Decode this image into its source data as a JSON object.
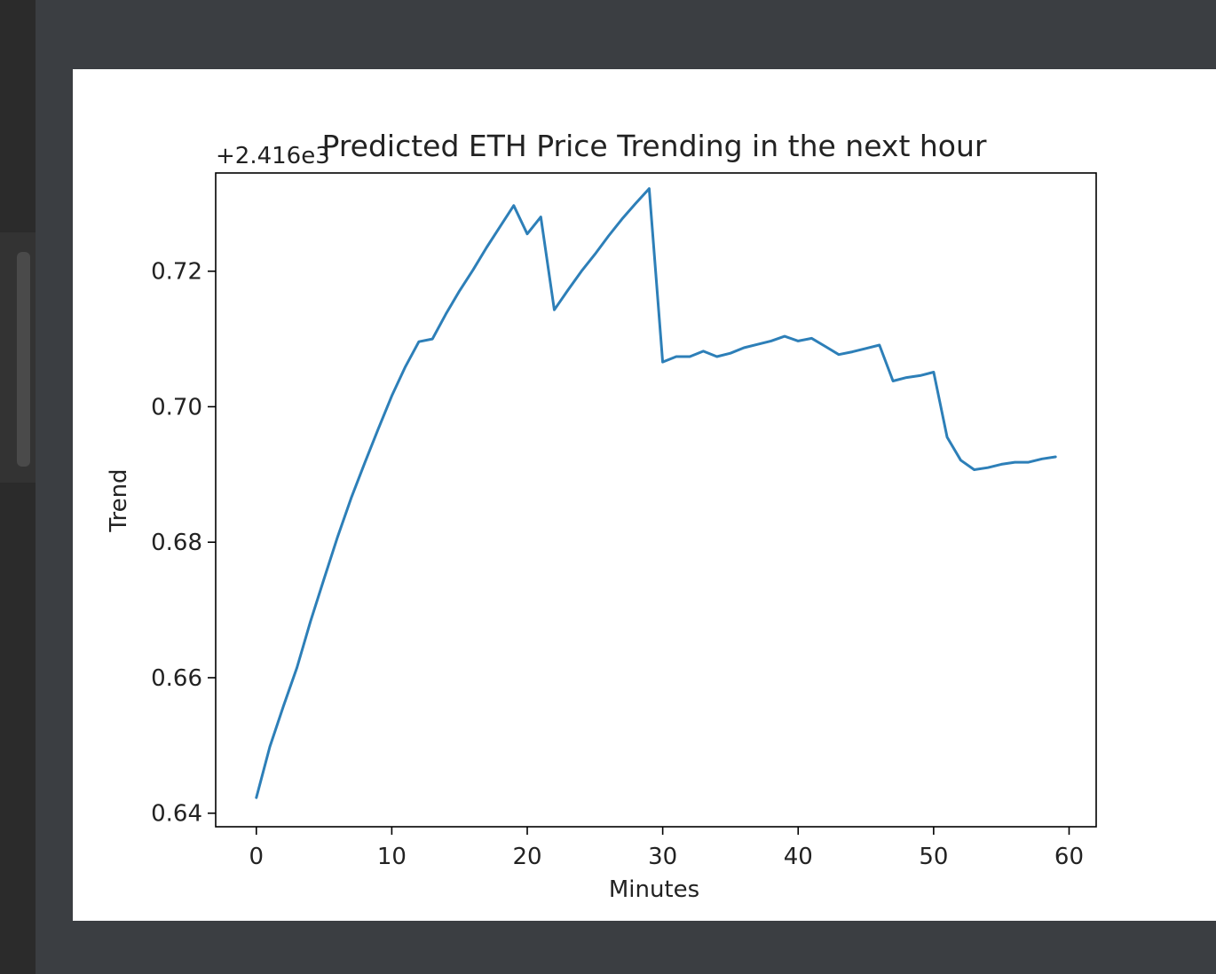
{
  "chart_data": {
    "type": "line",
    "title": "Predicted ETH Price Trending in the next hour",
    "xlabel": "Minutes",
    "ylabel": "Trend",
    "offset_label": "+2.416e3",
    "xlim": [
      -3,
      62
    ],
    "ylim": [
      0.638,
      0.7345
    ],
    "x_ticks": [
      0,
      10,
      20,
      30,
      40,
      50,
      60
    ],
    "y_ticks": [
      0.64,
      0.66,
      0.68,
      0.7,
      0.72
    ],
    "y_tick_labels": [
      "0.64",
      "0.66",
      "0.68",
      "0.70",
      "0.72"
    ],
    "grid": false,
    "series": [
      {
        "color": "#2d7fb8",
        "x": [
          0,
          1,
          2,
          3,
          4,
          5,
          6,
          7,
          8,
          9,
          10,
          11,
          12,
          13,
          14,
          15,
          16,
          17,
          18,
          19,
          20,
          21,
          22,
          23,
          24,
          25,
          26,
          27,
          28,
          29,
          30,
          31,
          32,
          33,
          34,
          35,
          36,
          37,
          38,
          39,
          40,
          41,
          42,
          43,
          44,
          45,
          46,
          47,
          48,
          49,
          50,
          51,
          52,
          53,
          54,
          55,
          56,
          57,
          58,
          59
        ],
        "y": [
          0.6423,
          0.6498,
          0.6558,
          0.6615,
          0.6683,
          0.6746,
          0.6808,
          0.6865,
          0.6917,
          0.6967,
          0.7016,
          0.7059,
          0.7096,
          0.71,
          0.7137,
          0.7171,
          0.7202,
          0.7235,
          0.7266,
          0.7297,
          0.7255,
          0.728,
          0.7143,
          0.7172,
          0.72,
          0.7225,
          0.7252,
          0.7277,
          0.73,
          0.7322,
          0.7066,
          0.7074,
          0.7074,
          0.7082,
          0.7074,
          0.7079,
          0.7087,
          0.7092,
          0.7097,
          0.7104,
          0.7097,
          0.7101,
          0.7089,
          0.7077,
          0.7081,
          0.7086,
          0.7091,
          0.7038,
          0.7043,
          0.7046,
          0.7051,
          0.6955,
          0.6921,
          0.6907,
          0.691,
          0.6915,
          0.6918,
          0.6918,
          0.6923,
          0.6926
        ]
      }
    ]
  }
}
